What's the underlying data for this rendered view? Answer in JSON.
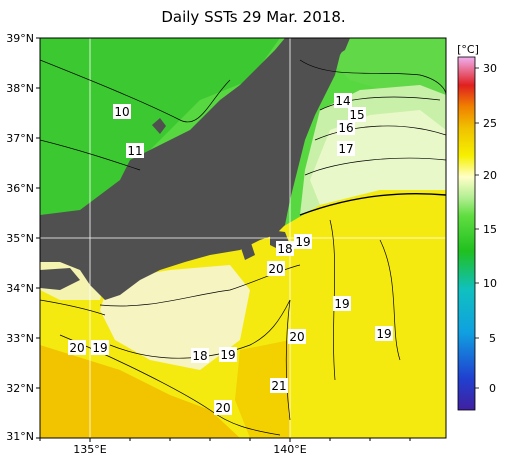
{
  "title": "Daily SSTs 29 Mar. 2018.",
  "lat_labels": [
    "39°N",
    "38°N",
    "37°N",
    "36°N",
    "35°N",
    "34°N",
    "33°N",
    "32°N",
    "31°N"
  ],
  "lon_labels": [
    "135°E",
    "140°E"
  ],
  "colorbar": {
    "unit": "[°C]",
    "ticks": [
      "30",
      "25",
      "20",
      "15",
      "10",
      "5",
      "0"
    ],
    "range": [
      -3,
      32
    ]
  },
  "contour_labels": [
    {
      "text": "10"
    },
    {
      "text": "11"
    },
    {
      "text": "14"
    },
    {
      "text": "15"
    },
    {
      "text": "16"
    },
    {
      "text": "17"
    },
    {
      "text": "18"
    },
    {
      "text": "19"
    },
    {
      "text": "20"
    },
    {
      "text": "19"
    },
    {
      "text": "20"
    },
    {
      "text": "19"
    },
    {
      "text": "20"
    },
    {
      "text": "19"
    },
    {
      "text": "18"
    },
    {
      "text": "19"
    },
    {
      "text": "21"
    },
    {
      "text": "20"
    }
  ],
  "colors": {
    "land": "#505050",
    "cold_green": "#33cc33",
    "mid_green": "#66dd55",
    "warm_yellow": "#f5f000",
    "pale": "#f6f6c8",
    "orange": "#f0c000"
  }
}
